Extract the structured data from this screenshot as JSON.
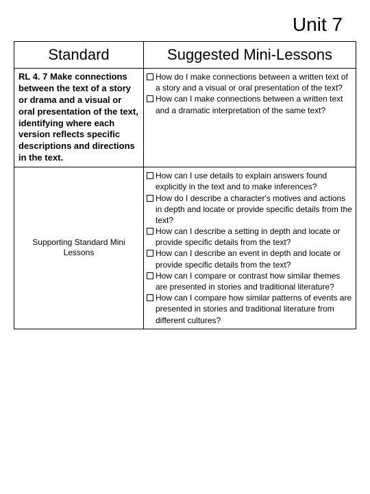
{
  "unit_title": "Unit 7",
  "headers": {
    "standard": "Standard",
    "lessons": "Suggested Mini-Lessons"
  },
  "rows": [
    {
      "standard": "RL 4. 7 Make connections between the text of a story or drama and a visual or oral presentation of the text, identifying where each version reflects specific descriptions and directions in the text.",
      "standard_bold": true,
      "lessons": [
        "How do I make connections between a written text of a story and a visual or oral presentation of the text?",
        "How can I make connections between a written text and a dramatic interpretation of the same text?"
      ]
    },
    {
      "standard": "Supporting Standard Mini Lessons",
      "standard_bold": false,
      "lessons": [
        "How can I use details to explain answers found explicitly in the text and to make inferences?",
        "How do I describe a character's motives and actions in depth and locate or provide specific details from the text?",
        "How can I describe a setting in depth and locate or provide specific details from the text?",
        "How can I describe an event in depth and locate or provide specific details from the text?",
        "How can I compare or contrast how similar themes are presented in stories and traditional literature?",
        "How can I compare how similar patterns of events are presented in stories and traditional literature from different cultures?"
      ]
    }
  ]
}
